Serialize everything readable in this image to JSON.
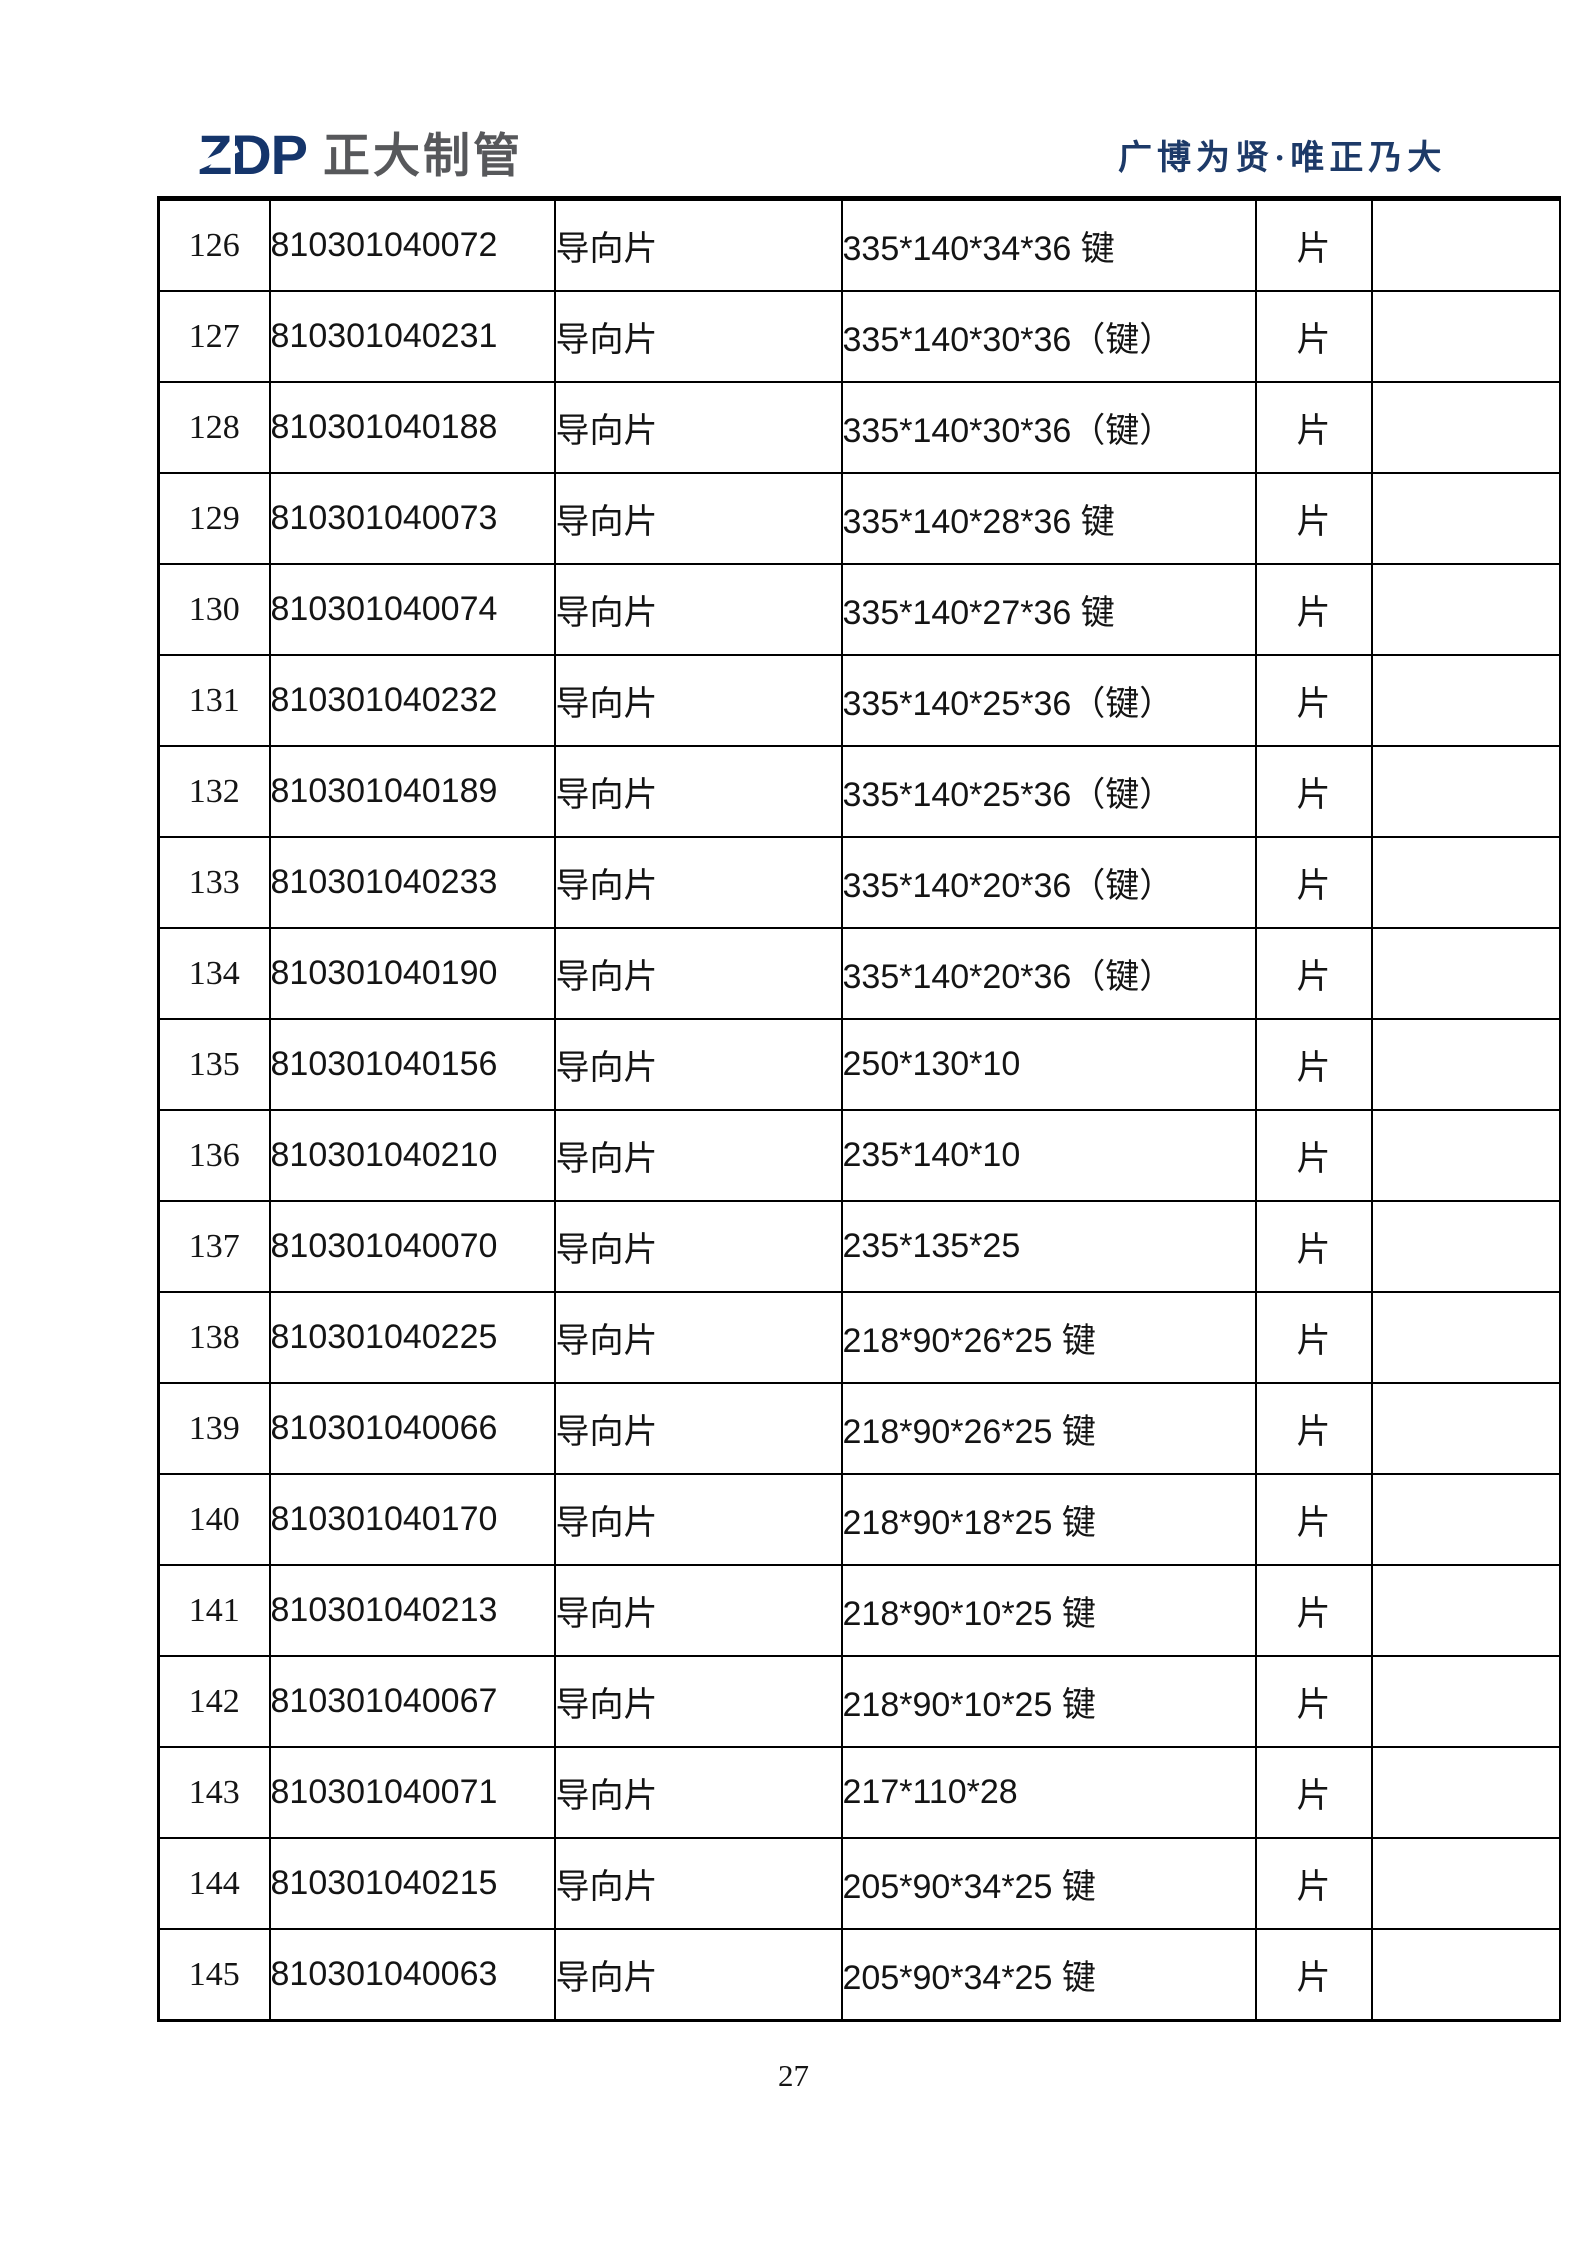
{
  "header": {
    "logo_zdp": "ZDP",
    "logo_company": "正大制管",
    "motto": "广博为贤·唯正乃大"
  },
  "colors": {
    "logo_navy": "#15356b",
    "logo_gray": "#57585b",
    "motto_blue": "#1d3a68",
    "table_border": "#000000",
    "text": "#141414",
    "background": "#ffffff"
  },
  "table": {
    "rows": [
      [
        "126",
        "810301040072",
        "导向片",
        "335*140*34*36 键",
        "片",
        ""
      ],
      [
        "127",
        "810301040231",
        "导向片",
        "335*140*30*36（键）",
        "片",
        ""
      ],
      [
        "128",
        "810301040188",
        "导向片",
        "335*140*30*36（键）",
        "片",
        ""
      ],
      [
        "129",
        "810301040073",
        "导向片",
        "335*140*28*36 键",
        "片",
        ""
      ],
      [
        "130",
        "810301040074",
        "导向片",
        "335*140*27*36 键",
        "片",
        ""
      ],
      [
        "131",
        "810301040232",
        "导向片",
        "335*140*25*36（键）",
        "片",
        ""
      ],
      [
        "132",
        "810301040189",
        "导向片",
        "335*140*25*36（键）",
        "片",
        ""
      ],
      [
        "133",
        "810301040233",
        "导向片",
        "335*140*20*36（键）",
        "片",
        ""
      ],
      [
        "134",
        "810301040190",
        "导向片",
        "335*140*20*36（键）",
        "片",
        ""
      ],
      [
        "135",
        "810301040156",
        "导向片",
        "250*130*10",
        "片",
        ""
      ],
      [
        "136",
        "810301040210",
        "导向片",
        "235*140*10",
        "片",
        ""
      ],
      [
        "137",
        "810301040070",
        "导向片",
        "235*135*25",
        "片",
        ""
      ],
      [
        "138",
        "810301040225",
        "导向片",
        "218*90*26*25 键",
        "片",
        ""
      ],
      [
        "139",
        "810301040066",
        "导向片",
        "218*90*26*25 键",
        "片",
        ""
      ],
      [
        "140",
        "810301040170",
        "导向片",
        "218*90*18*25 键",
        "片",
        ""
      ],
      [
        "141",
        "810301040213",
        "导向片",
        "218*90*10*25 键",
        "片",
        ""
      ],
      [
        "142",
        "810301040067",
        "导向片",
        "218*90*10*25 键",
        "片",
        ""
      ],
      [
        "143",
        "810301040071",
        "导向片",
        "217*110*28",
        "片",
        ""
      ],
      [
        "144",
        "810301040215",
        "导向片",
        "205*90*34*25 键",
        "片",
        ""
      ],
      [
        "145",
        "810301040063",
        "导向片",
        "205*90*34*25 键",
        "片",
        ""
      ]
    ]
  },
  "footer": {
    "page_number": "27"
  }
}
